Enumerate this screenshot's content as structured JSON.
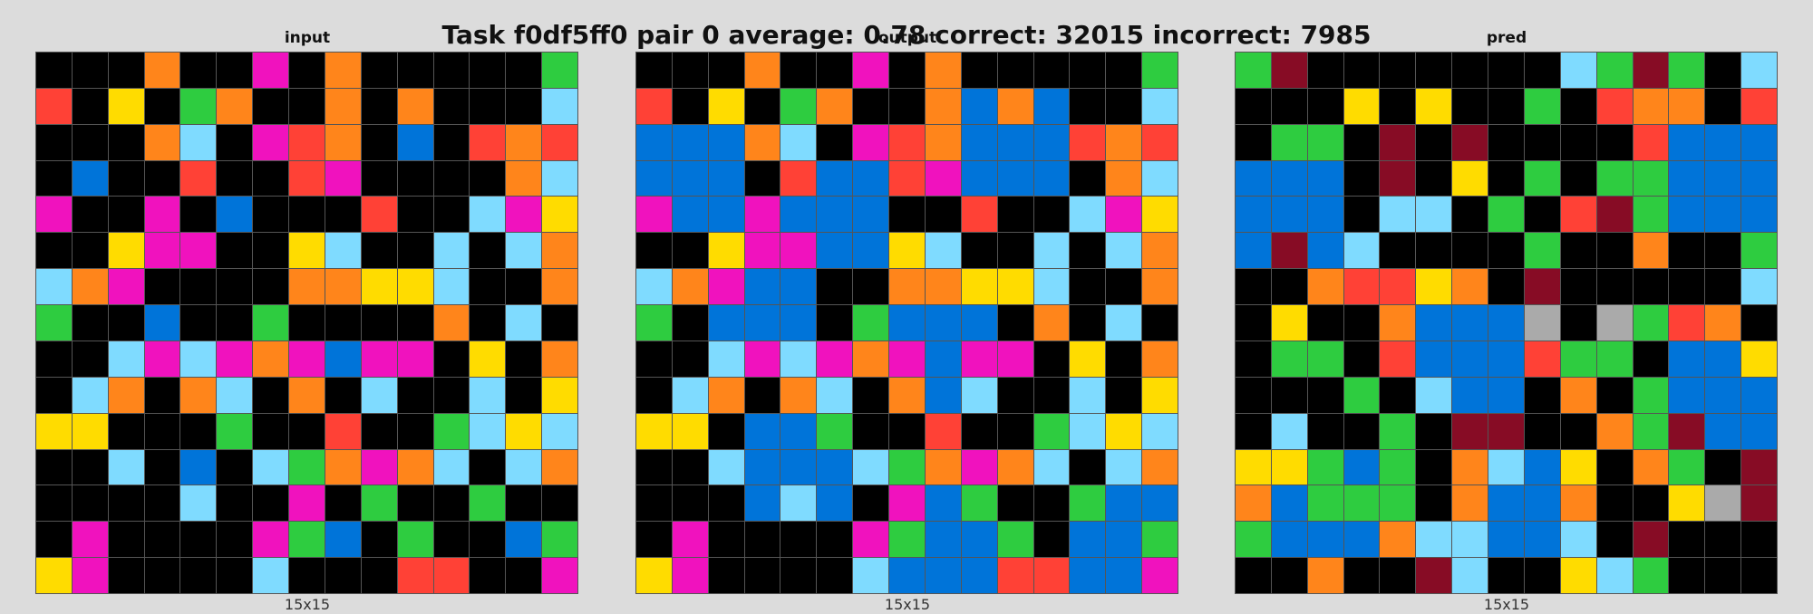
{
  "title": "Task f0df5ff0 pair 0 average: 0.78 correct: 32015 incorrect: 7985",
  "palette": {
    "0": "#000000",
    "1": "#0074D9",
    "2": "#FF4136",
    "3": "#2ECC40",
    "4": "#FFDC00",
    "5": "#AAAAAA",
    "6": "#F012BE",
    "7": "#FF851B",
    "8": "#7FDBFF",
    "9": "#870C25"
  },
  "panels": [
    {
      "label": "input",
      "size_label": "15x15",
      "grid": [
        [
          0,
          0,
          0,
          7,
          0,
          0,
          6,
          0,
          7,
          0,
          0,
          0,
          0,
          0,
          3
        ],
        [
          2,
          0,
          4,
          0,
          3,
          7,
          0,
          0,
          7,
          0,
          7,
          0,
          0,
          0,
          8
        ],
        [
          0,
          0,
          0,
          7,
          8,
          0,
          6,
          2,
          7,
          0,
          1,
          0,
          2,
          7,
          2
        ],
        [
          0,
          1,
          0,
          0,
          2,
          0,
          0,
          2,
          6,
          0,
          0,
          0,
          0,
          7,
          8
        ],
        [
          6,
          0,
          0,
          6,
          0,
          1,
          0,
          0,
          0,
          2,
          0,
          0,
          8,
          6,
          4
        ],
        [
          0,
          0,
          4,
          6,
          6,
          0,
          0,
          4,
          8,
          0,
          0,
          8,
          0,
          8,
          7
        ],
        [
          8,
          7,
          6,
          0,
          0,
          0,
          0,
          7,
          7,
          4,
          4,
          8,
          0,
          0,
          7
        ],
        [
          3,
          0,
          0,
          1,
          0,
          0,
          3,
          0,
          0,
          0,
          0,
          7,
          0,
          8,
          0
        ],
        [
          0,
          0,
          8,
          6,
          8,
          6,
          7,
          6,
          1,
          6,
          6,
          0,
          4,
          0,
          7
        ],
        [
          0,
          8,
          7,
          0,
          7,
          8,
          0,
          7,
          0,
          8,
          0,
          0,
          8,
          0,
          4
        ],
        [
          4,
          4,
          0,
          0,
          0,
          3,
          0,
          0,
          2,
          0,
          0,
          3,
          8,
          4,
          8
        ],
        [
          0,
          0,
          8,
          0,
          1,
          0,
          8,
          3,
          7,
          6,
          7,
          8,
          0,
          8,
          7
        ],
        [
          0,
          0,
          0,
          0,
          8,
          0,
          0,
          6,
          0,
          3,
          0,
          0,
          3,
          0,
          0
        ],
        [
          0,
          6,
          0,
          0,
          0,
          0,
          6,
          3,
          1,
          0,
          3,
          0,
          0,
          1,
          3
        ],
        [
          4,
          6,
          0,
          0,
          0,
          0,
          8,
          0,
          0,
          0,
          2,
          2,
          0,
          0,
          6
        ]
      ]
    },
    {
      "label": "output",
      "size_label": "15x15",
      "grid": [
        [
          0,
          0,
          0,
          7,
          0,
          0,
          6,
          0,
          7,
          0,
          0,
          0,
          0,
          0,
          3
        ],
        [
          2,
          0,
          4,
          0,
          3,
          7,
          0,
          0,
          7,
          1,
          7,
          1,
          0,
          0,
          8
        ],
        [
          1,
          1,
          1,
          7,
          8,
          0,
          6,
          2,
          7,
          1,
          1,
          1,
          2,
          7,
          2
        ],
        [
          1,
          1,
          1,
          0,
          2,
          1,
          1,
          2,
          6,
          1,
          1,
          1,
          0,
          7,
          8
        ],
        [
          6,
          1,
          1,
          6,
          1,
          1,
          1,
          0,
          0,
          2,
          0,
          0,
          8,
          6,
          4
        ],
        [
          0,
          0,
          4,
          6,
          6,
          1,
          1,
          4,
          8,
          0,
          0,
          8,
          0,
          8,
          7
        ],
        [
          8,
          7,
          6,
          1,
          1,
          0,
          0,
          7,
          7,
          4,
          4,
          8,
          0,
          0,
          7
        ],
        [
          3,
          0,
          1,
          1,
          1,
          0,
          3,
          1,
          1,
          1,
          0,
          7,
          0,
          8,
          0
        ],
        [
          0,
          0,
          8,
          6,
          8,
          6,
          7,
          6,
          1,
          6,
          6,
          0,
          4,
          0,
          7
        ],
        [
          0,
          8,
          7,
          0,
          7,
          8,
          0,
          7,
          1,
          8,
          0,
          0,
          8,
          0,
          4
        ],
        [
          4,
          4,
          0,
          1,
          1,
          3,
          0,
          0,
          2,
          0,
          0,
          3,
          8,
          4,
          8
        ],
        [
          0,
          0,
          8,
          1,
          1,
          1,
          8,
          3,
          7,
          6,
          7,
          8,
          0,
          8,
          7
        ],
        [
          0,
          0,
          0,
          1,
          8,
          1,
          0,
          6,
          1,
          3,
          0,
          0,
          3,
          1,
          1
        ],
        [
          0,
          6,
          0,
          0,
          0,
          0,
          6,
          3,
          1,
          1,
          3,
          0,
          1,
          1,
          3
        ],
        [
          4,
          6,
          0,
          0,
          0,
          0,
          8,
          1,
          1,
          1,
          2,
          2,
          1,
          1,
          6
        ]
      ]
    },
    {
      "label": "pred",
      "size_label": "15x15",
      "grid": [
        [
          3,
          9,
          0,
          0,
          0,
          0,
          0,
          0,
          0,
          8,
          3,
          9,
          3,
          0,
          8
        ],
        [
          0,
          0,
          0,
          4,
          0,
          4,
          0,
          0,
          3,
          0,
          2,
          7,
          7,
          0,
          2
        ],
        [
          0,
          3,
          3,
          0,
          9,
          0,
          9,
          0,
          0,
          0,
          0,
          2,
          1,
          1,
          1
        ],
        [
          1,
          1,
          1,
          0,
          9,
          0,
          4,
          0,
          3,
          0,
          3,
          3,
          1,
          1,
          1
        ],
        [
          1,
          1,
          1,
          0,
          8,
          8,
          0,
          3,
          0,
          2,
          9,
          3,
          1,
          1,
          1
        ],
        [
          1,
          9,
          1,
          8,
          0,
          0,
          0,
          0,
          3,
          0,
          0,
          7,
          0,
          0,
          3
        ],
        [
          0,
          0,
          7,
          2,
          2,
          4,
          7,
          0,
          9,
          0,
          0,
          0,
          0,
          0,
          8
        ],
        [
          0,
          4,
          0,
          0,
          7,
          1,
          1,
          1,
          5,
          0,
          5,
          3,
          2,
          7,
          0
        ],
        [
          0,
          3,
          3,
          0,
          2,
          1,
          1,
          1,
          2,
          3,
          3,
          0,
          1,
          1,
          4
        ],
        [
          0,
          0,
          0,
          3,
          0,
          8,
          1,
          1,
          0,
          7,
          0,
          3,
          1,
          1,
          1
        ],
        [
          0,
          8,
          0,
          0,
          3,
          0,
          9,
          9,
          0,
          0,
          7,
          3,
          9,
          1,
          1
        ],
        [
          4,
          4,
          3,
          1,
          3,
          0,
          7,
          8,
          1,
          4,
          0,
          7,
          3,
          0,
          9
        ],
        [
          7,
          1,
          3,
          3,
          3,
          0,
          7,
          1,
          1,
          7,
          0,
          0,
          4,
          5,
          9
        ],
        [
          3,
          1,
          1,
          1,
          7,
          8,
          8,
          1,
          1,
          8,
          0,
          9,
          0,
          0,
          0
        ],
        [
          0,
          0,
          7,
          0,
          0,
          9,
          8,
          0,
          0,
          4,
          8,
          3,
          0,
          0,
          0
        ]
      ]
    }
  ]
}
